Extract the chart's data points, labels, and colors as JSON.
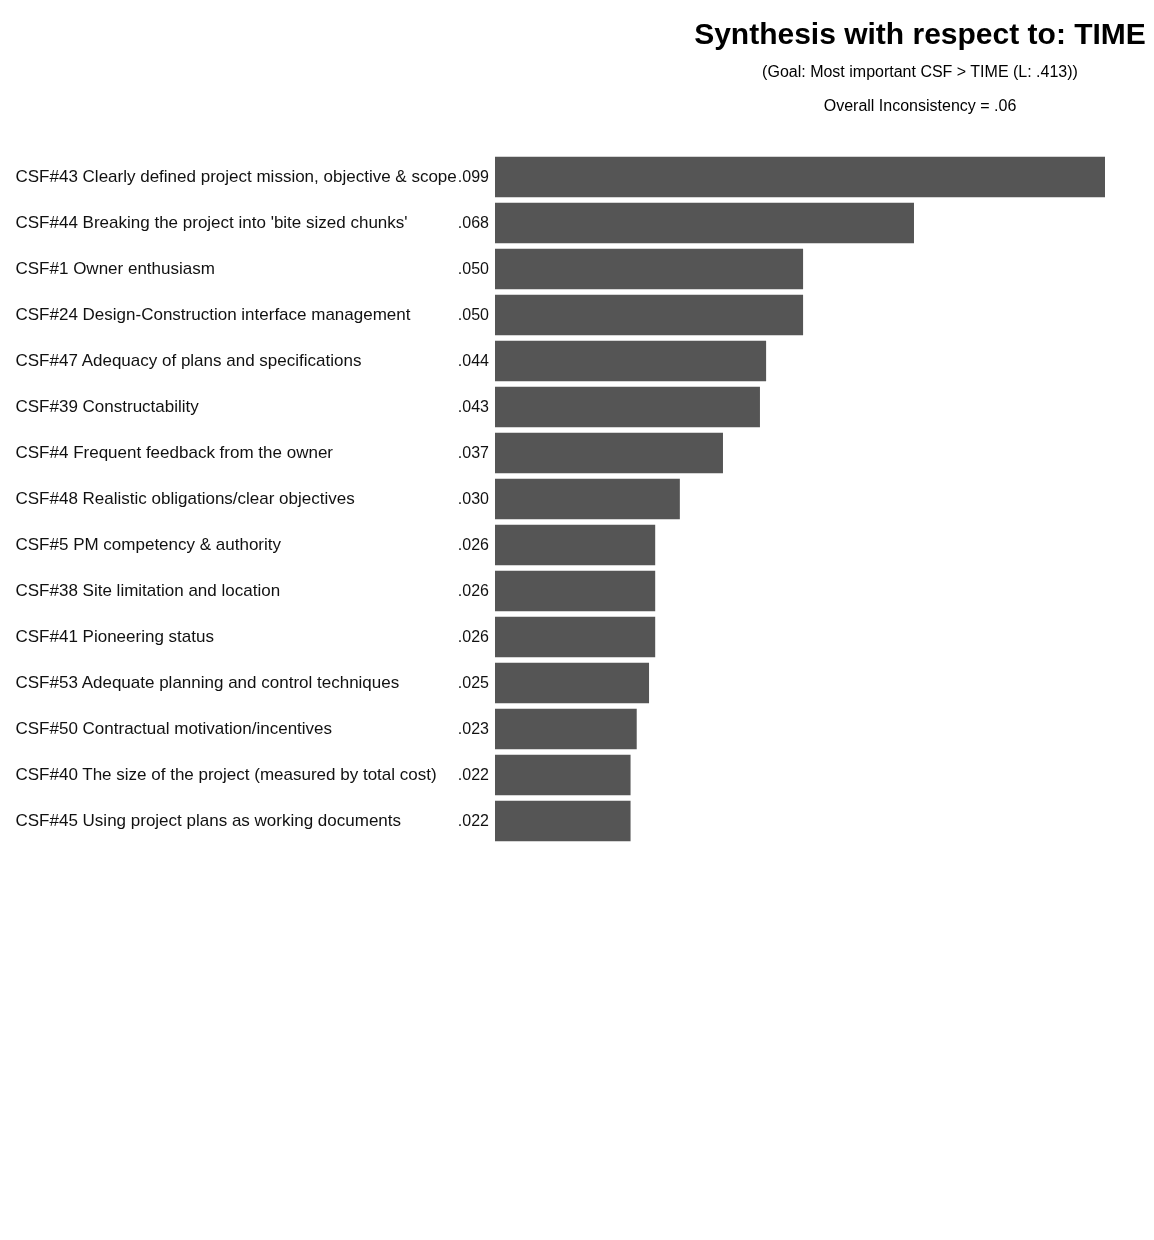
{
  "chart_data": {
    "type": "bar",
    "orientation": "horizontal",
    "title": "Synthesis with respect to: TIME",
    "subtitle": "(Goal: Most important CSF > TIME (L: .413))",
    "annotations": [
      "Overall Inconsistency = .06"
    ],
    "categories": [
      "CSF#43 Clearly defined project mission, objective & scope",
      "CSF#44 Breaking the project into 'bite sized chunks'",
      "CSF#1 Owner enthusiasm",
      "CSF#24 Design-Construction interface management",
      "CSF#47 Adequacy of plans and specifications",
      "CSF#39 Constructability",
      "CSF#4 Frequent feedback from the owner",
      "CSF#48 Realistic obligations/clear objectives",
      "CSF#5 PM competency & authority",
      "CSF#38 Site limitation and location",
      "CSF#41 Pioneering status",
      "CSF#53 Adequate planning and control techniques",
      "CSF#50 Contractual motivation/incentives",
      "CSF#40 The size of the project (measured by total cost)",
      "CSF#45 Using project plans as working documents"
    ],
    "values": [
      0.099,
      0.068,
      0.05,
      0.05,
      0.044,
      0.043,
      0.037,
      0.03,
      0.026,
      0.026,
      0.026,
      0.025,
      0.023,
      0.022,
      0.022
    ],
    "value_labels": [
      ".099",
      ".068",
      ".050",
      ".050",
      ".044",
      ".043",
      ".037",
      ".030",
      ".026",
      ".026",
      ".026",
      ".025",
      ".023",
      ".022",
      ".022"
    ],
    "color": "#555555"
  }
}
